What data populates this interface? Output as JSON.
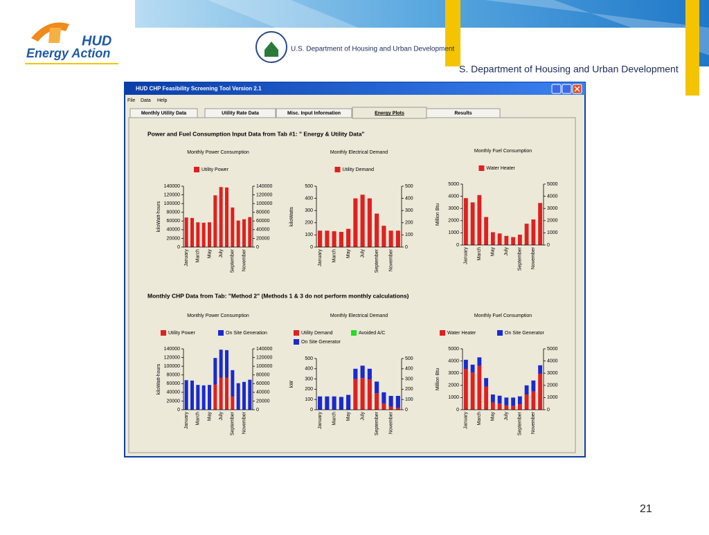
{
  "header": {
    "logo_top": "HUD",
    "logo_bottom": "Energy Action",
    "seal_text": "U.S. Department of Housing and Urban Development",
    "banner_text": "S. Department of Housing and Urban Development"
  },
  "window": {
    "title": "HUD CHP Feasibility Screening Tool Version 2.1",
    "menu": [
      "File",
      "Data",
      "Help"
    ],
    "tabs": [
      "Monthly Utility Data",
      "Utility Rate Data",
      "Misc. Input Information",
      "Energy Plots",
      "Results"
    ],
    "sections": [
      "Power and Fuel Consumption Input Data from Tab #1: \" Energy & Utility Data\"",
      "Monthly CHP Data from Tab: \"Method 2\" (Methods 1 & 3 do not perform monthly calculations)"
    ]
  },
  "chart_data": [
    {
      "type": "bar",
      "title": "Monthly Power Consumption",
      "ylabel": "kiloWatt-hours",
      "categories": [
        "January",
        null,
        "March",
        null,
        "May",
        null,
        "July",
        null,
        "September",
        null,
        "November",
        null
      ],
      "series": [
        {
          "name": "Utility Power",
          "color": "#e02020",
          "values": [
            68000,
            67000,
            57000,
            56000,
            57000,
            119000,
            138000,
            137000,
            91000,
            61000,
            64000,
            69000
          ]
        }
      ],
      "ylim": [
        0,
        140000
      ],
      "yticks": [
        0,
        20000,
        40000,
        60000,
        80000,
        100000,
        120000,
        140000
      ],
      "y2lim": [
        0,
        140000
      ],
      "y2ticks": [
        0,
        20000,
        40000,
        60000,
        80000,
        100000,
        120000,
        140000
      ]
    },
    {
      "type": "bar",
      "title": "Monthly Electrical Demand",
      "ylabel": "kiloWatts",
      "categories": [
        "January",
        null,
        "March",
        null,
        "May",
        null,
        "July",
        null,
        "September",
        null,
        "November",
        null
      ],
      "series": [
        {
          "name": "Utility Demand",
          "color": "#e02020",
          "values": [
            135,
            135,
            130,
            125,
            150,
            400,
            430,
            400,
            275,
            175,
            135,
            135
          ]
        }
      ],
      "ylim": [
        0,
        500
      ],
      "yticks": [
        0,
        100,
        200,
        300,
        400,
        500
      ],
      "y2lim": [
        0,
        500
      ],
      "y2ticks": [
        0,
        100,
        200,
        300,
        400,
        500
      ]
    },
    {
      "type": "bar",
      "title": "Monthly Fuel Consumption",
      "ylabel": "Million Btu",
      "categories": [
        "January",
        null,
        "March",
        null,
        "May",
        null,
        "July",
        null,
        "September",
        null,
        "November",
        null
      ],
      "series": [
        {
          "name": "Water Heater",
          "color": "#e02020",
          "values": [
            3850,
            3500,
            4100,
            2300,
            1050,
            950,
            750,
            650,
            850,
            1750,
            2100,
            3450
          ]
        }
      ],
      "ylim": [
        0,
        5000
      ],
      "yticks": [
        0,
        1000,
        2000,
        3000,
        4000,
        5000
      ],
      "y2lim": [
        0,
        5000
      ],
      "y2ticks": [
        0,
        1000,
        2000,
        3000,
        4000,
        5000
      ]
    },
    {
      "type": "stacked_bar",
      "title": "Monthly Power Consumption",
      "ylabel": "kiloWatt-hours",
      "categories": [
        "January",
        null,
        "March",
        null,
        "May",
        null,
        "July",
        null,
        "September",
        null,
        "November",
        null
      ],
      "series": [
        {
          "name": "Utility Power",
          "color": "#e02020",
          "values": [
            0,
            0,
            0,
            0,
            0,
            58000,
            74000,
            74000,
            30000,
            0,
            0,
            0
          ]
        },
        {
          "name": "On Site Generation",
          "color": "#1a2ad0",
          "values": [
            68000,
            67000,
            57000,
            56000,
            57000,
            61000,
            64000,
            63000,
            61000,
            61000,
            64000,
            69000
          ]
        }
      ],
      "ylim": [
        0,
        140000
      ],
      "yticks": [
        0,
        20000,
        40000,
        60000,
        80000,
        100000,
        120000,
        140000
      ],
      "y2lim": [
        0,
        140000
      ],
      "y2ticks": [
        0,
        20000,
        40000,
        60000,
        80000,
        100000,
        120000,
        140000
      ]
    },
    {
      "type": "stacked_bar",
      "title": "Monthly Electrical Demand",
      "ylabel": "kW",
      "categories": [
        "January",
        null,
        "March",
        null,
        "May",
        null,
        "July",
        null,
        "September",
        null,
        "November",
        null
      ],
      "series": [
        {
          "name": "Utility Demand",
          "color": "#e02020",
          "values": [
            0,
            0,
            0,
            0,
            0,
            300,
            310,
            295,
            160,
            60,
            30,
            20
          ]
        },
        {
          "name": "Avoided A/C",
          "color": "#20e020",
          "values": [
            0,
            0,
            0,
            0,
            0,
            0,
            0,
            0,
            0,
            0,
            0,
            0
          ]
        },
        {
          "name": "On Site Generator",
          "color": "#1a2ad0",
          "values": [
            130,
            130,
            130,
            125,
            145,
            100,
            120,
            105,
            115,
            110,
            105,
            115
          ]
        }
      ],
      "ylim": [
        0,
        500
      ],
      "yticks": [
        0,
        100,
        200,
        300,
        400,
        500
      ],
      "y2lim": [
        0,
        500
      ],
      "y2ticks": [
        0,
        100,
        200,
        300,
        400,
        500
      ]
    },
    {
      "type": "stacked_bar",
      "title": "Monthly Fuel Consumption",
      "ylabel": "Million Btu",
      "categories": [
        "January",
        null,
        "March",
        null,
        "May",
        null,
        "July",
        null,
        "September",
        null,
        "November",
        null
      ],
      "series": [
        {
          "name": "Water Heater",
          "color": "#e02020",
          "values": [
            3350,
            3050,
            3600,
            1900,
            600,
            500,
            350,
            300,
            450,
            1250,
            1500,
            2950
          ]
        },
        {
          "name": "On Site Generator",
          "color": "#1a2ad0",
          "values": [
            750,
            650,
            700,
            700,
            650,
            650,
            650,
            700,
            650,
            750,
            900,
            700
          ]
        }
      ],
      "ylim": [
        0,
        5000
      ],
      "yticks": [
        0,
        1000,
        2000,
        3000,
        4000,
        5000
      ],
      "y2lim": [
        0,
        5000
      ],
      "y2ticks": [
        0,
        1000,
        2000,
        3000,
        4000,
        5000
      ]
    }
  ],
  "page_number": "21"
}
